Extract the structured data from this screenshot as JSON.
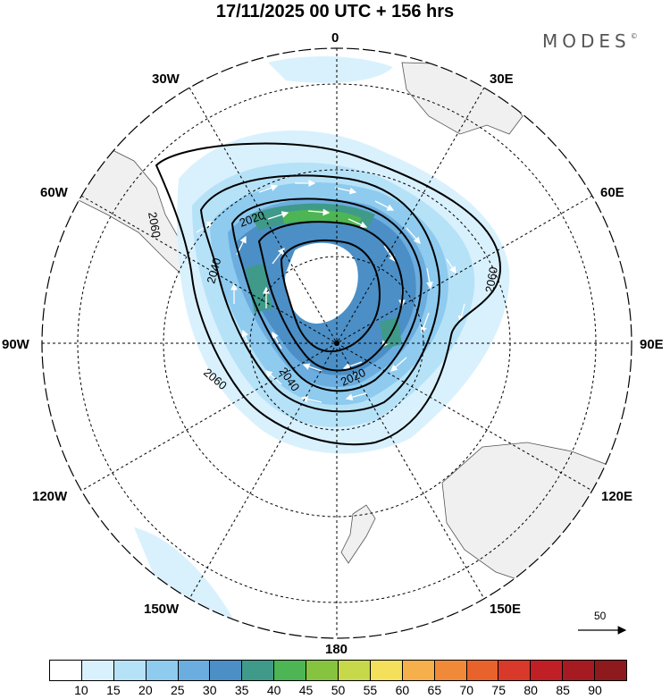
{
  "header": {
    "title": "17/11/2025  00 UTC  + 156 hrs",
    "brand": "MODES",
    "brand_mark": "©"
  },
  "longitude_labels": [
    "0",
    "30E",
    "60E",
    "90E",
    "120E",
    "150E",
    "180",
    "150W",
    "120W",
    "90W",
    "60W",
    "30W"
  ],
  "contour_labels": [
    "2020",
    "2040",
    "2060"
  ],
  "wind_reference": {
    "label": "50"
  },
  "colorbar": {
    "ticks": [
      "10",
      "15",
      "20",
      "25",
      "30",
      "35",
      "40",
      "45",
      "50",
      "55",
      "60",
      "65",
      "70",
      "75",
      "80",
      "85",
      "90"
    ],
    "colors": [
      "#ffffff",
      "#d9f1fd",
      "#b6e2f8",
      "#8ecbef",
      "#6badde",
      "#4b8fc6",
      "#3f9a8a",
      "#4db553",
      "#86c440",
      "#c7d94a",
      "#f4e05a",
      "#f5b04b",
      "#f08a38",
      "#e8632b",
      "#d8392a",
      "#c01f26",
      "#a61a22",
      "#8e1a1e"
    ]
  }
}
